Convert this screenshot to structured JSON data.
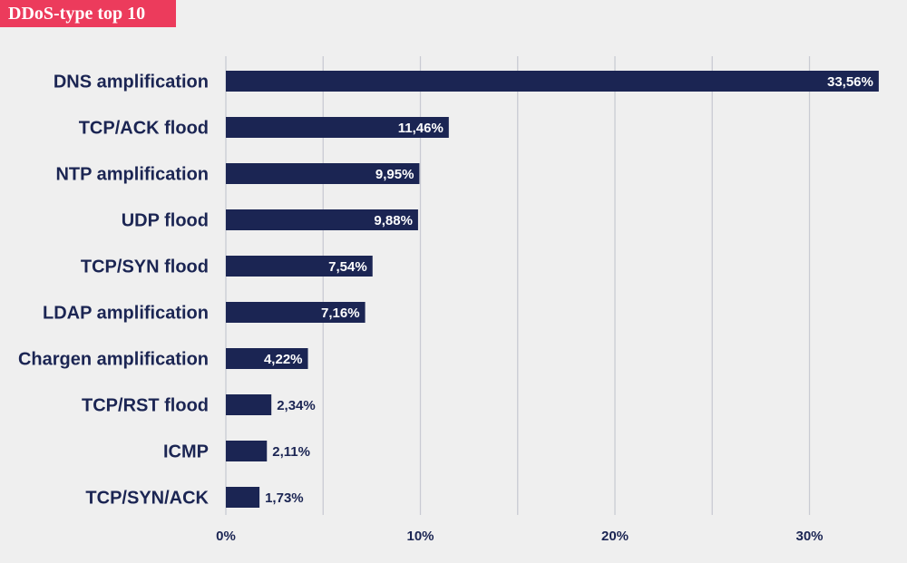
{
  "header": {
    "title": "DDoS-type top 10"
  },
  "colors": {
    "title_bg": "#ec3b5c",
    "bar": "#1b2553",
    "grid": "#c9cbd3",
    "background": "#efefef",
    "text": "#1b2553"
  },
  "chart_data": {
    "type": "bar",
    "orientation": "horizontal",
    "title": "DDoS-type top 10",
    "xlabel": "",
    "ylabel": "",
    "xlim": [
      0,
      35
    ],
    "categories": [
      "DNS amplification",
      "TCP/ACK flood",
      "NTP amplification",
      "UDP flood",
      "TCP/SYN flood",
      "LDAP amplification",
      "Chargen amplification",
      "TCP/RST flood",
      "ICMP",
      "TCP/SYN/ACK"
    ],
    "values": [
      33.56,
      11.46,
      9.95,
      9.88,
      7.54,
      7.16,
      4.22,
      2.34,
      2.11,
      1.73
    ],
    "value_labels": [
      "33,56%",
      "11,46%",
      "9,95%",
      "9,88%",
      "7,54%",
      "7,16%",
      "4,22%",
      "2,34%",
      "2,11%",
      "1,73%"
    ],
    "x_ticks": [
      0,
      10,
      20,
      30
    ],
    "x_tick_labels": [
      "0%",
      "10%",
      "20%",
      "30%"
    ],
    "gridlines": [
      0,
      5,
      10,
      15,
      20,
      25,
      30
    ],
    "grid": true
  }
}
